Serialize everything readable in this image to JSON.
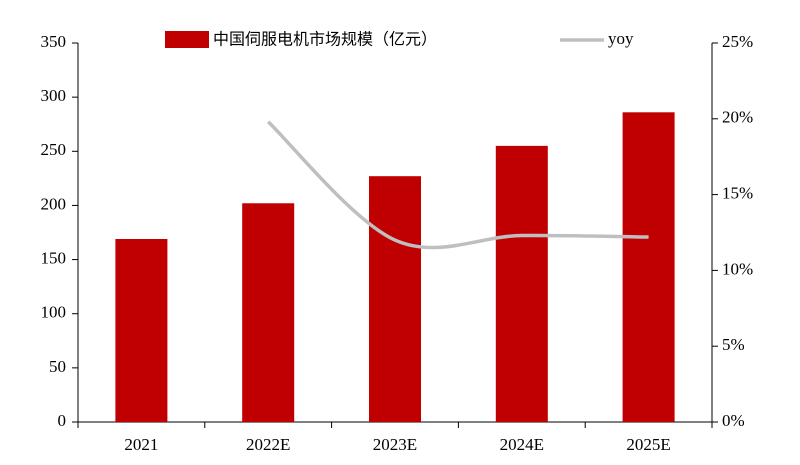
{
  "chart_data": {
    "type": "bar",
    "categories": [
      "2021",
      "2022E",
      "2023E",
      "2024E",
      "2025E"
    ],
    "series": [
      {
        "name": "中国伺服电机市场规模（亿元）",
        "type": "bar",
        "color": "#c00000",
        "values": [
          169,
          202,
          227,
          255,
          286
        ]
      },
      {
        "name": "yoy",
        "type": "line",
        "axis": "y2",
        "color": "#bfbfbf",
        "values": [
          null,
          19.8,
          12.0,
          12.3,
          12.2
        ]
      }
    ],
    "ylim": [
      0,
      350
    ],
    "yticks": [
      0,
      50,
      100,
      150,
      200,
      250,
      300,
      350
    ],
    "y2lim": [
      0,
      25
    ],
    "y2ticks": [
      {
        "value": 0,
        "label": "0%"
      },
      {
        "value": 5,
        "label": "5%"
      },
      {
        "value": 10,
        "label": "10%"
      },
      {
        "value": 15,
        "label": "15%"
      },
      {
        "value": 20,
        "label": "20%"
      },
      {
        "value": 25,
        "label": "25%"
      }
    ],
    "legend": "top"
  }
}
